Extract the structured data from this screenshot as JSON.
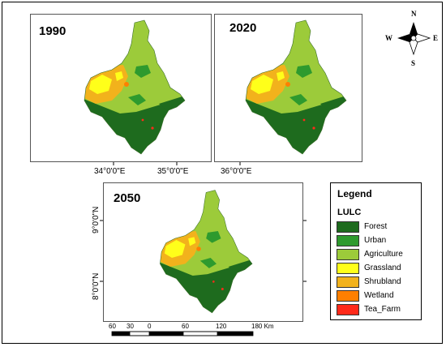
{
  "maps": [
    {
      "year": "1990"
    },
    {
      "year": "2020"
    },
    {
      "year": "2050"
    }
  ],
  "graticule": {
    "longitudes": [
      "34°0'0\"E",
      "35°0'0\"E",
      "36°0'0\"E"
    ],
    "latitudes": [
      "9°0'0\"N",
      "8°0'0\"N"
    ]
  },
  "legend": {
    "title": "Legend",
    "subtitle": "LULC",
    "classes": [
      {
        "label": "Forest",
        "color": "#1e6b1e"
      },
      {
        "label": "Urban",
        "color": "#2e9a2e"
      },
      {
        "label": "Agriculture",
        "color": "#9ccb3a"
      },
      {
        "label": "Grassland",
        "color": "#ffff1a"
      },
      {
        "label": "Shrubland",
        "color": "#f2b21c"
      },
      {
        "label": "Wetland",
        "color": "#ff7f00"
      },
      {
        "label": "Tea_Farm",
        "color": "#ff2a1a"
      }
    ]
  },
  "scale_bar": {
    "labels": [
      "60",
      "30",
      "0",
      "60",
      "120",
      "180 Km"
    ]
  },
  "compass": {
    "n": "N",
    "s": "S",
    "e": "E",
    "w": "W"
  }
}
